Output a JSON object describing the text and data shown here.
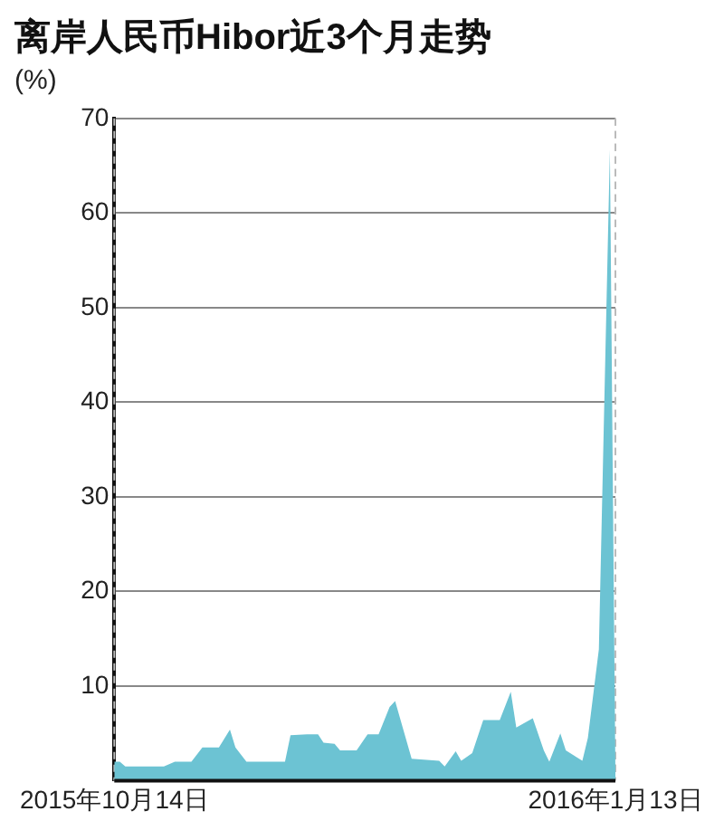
{
  "chart_data": {
    "type": "area",
    "title": "离岸人民币Hibor近3个月走势",
    "ylabel": "(%)",
    "x": [
      "2015-10-14",
      "2015-10-15",
      "2015-10-16",
      "2015-10-23",
      "2015-10-25",
      "2015-10-28",
      "2015-10-30",
      "2015-11-02",
      "2015-11-04",
      "2015-11-05",
      "2015-11-07",
      "2015-11-14",
      "2015-11-15",
      "2015-11-18",
      "2015-11-20",
      "2015-11-21",
      "2015-11-23",
      "2015-11-24",
      "2015-11-27",
      "2015-11-29",
      "2015-12-01",
      "2015-12-03",
      "2015-12-04",
      "2015-12-07",
      "2015-12-12",
      "2015-12-13",
      "2015-12-15",
      "2015-12-16",
      "2015-12-18",
      "2015-12-20",
      "2015-12-23",
      "2015-12-25",
      "2015-12-26",
      "2015-12-29",
      "2015-12-31",
      "2016-01-01",
      "2016-01-03",
      "2016-01-04",
      "2016-01-07",
      "2016-01-08",
      "2016-01-10",
      "2016-01-12",
      "2016-01-13"
    ],
    "series": [
      {
        "color": "#6cc3d3",
        "values": [
          2.0,
          2.0,
          1.5,
          1.5,
          2.0,
          2.0,
          3.5,
          3.5,
          5.4,
          3.5,
          2.0,
          2.0,
          4.8,
          4.9,
          4.9,
          4.0,
          3.9,
          3.2,
          3.2,
          4.9,
          4.9,
          7.8,
          8.4,
          2.3,
          2.1,
          1.5,
          3.1,
          2.1,
          2.9,
          6.4,
          6.4,
          9.4,
          5.6,
          6.6,
          3.2,
          2.0,
          5.0,
          3.2,
          2.1,
          4.5,
          13.9,
          66.7,
          1.0
        ]
      }
    ],
    "xlim": [
      "2015-10-14",
      "2016-01-13"
    ],
    "xticks": [
      {
        "value": "2015-10-14",
        "label": "2015年10月14日"
      },
      {
        "value": "2016-01-13",
        "label": "2016年1月13日"
      }
    ],
    "ylim": [
      0,
      70
    ],
    "yticks": [
      10,
      20,
      30,
      40,
      50,
      60,
      70
    ],
    "grid": true,
    "legend": false
  }
}
